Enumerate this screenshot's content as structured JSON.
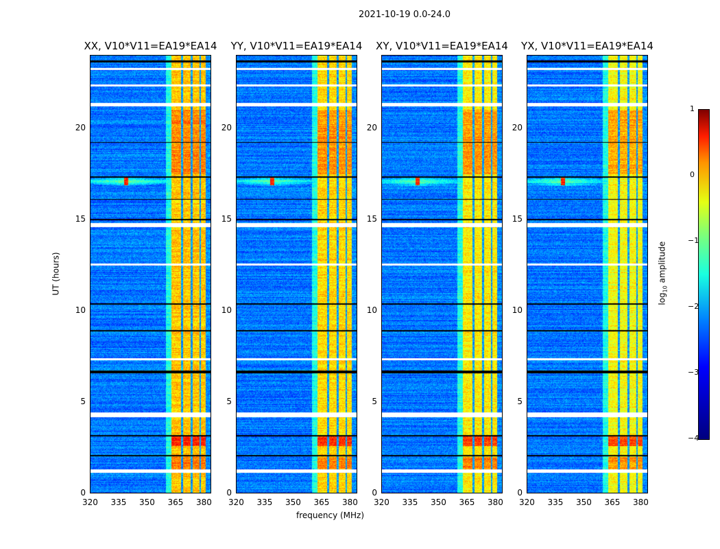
{
  "suptitle": "2021-10-19 0.0-24.0",
  "chart_data": {
    "type": "heatmap",
    "title": "2021-10-19 0.0-24.0",
    "xlabel": "frequency (MHz)",
    "ylabel": "UT (hours)",
    "xlim": [
      320,
      384
    ],
    "ylim": [
      0,
      24
    ],
    "xticks": [
      "320",
      "335",
      "350",
      "365",
      "380"
    ],
    "yticks": [
      "0",
      "5",
      "10",
      "15",
      "20"
    ],
    "panels": [
      {
        "title": "XX, V10*V11=EA19*EA14",
        "high_band_boost": 0.2
      },
      {
        "title": "YY, V10*V11=EA19*EA14",
        "high_band_boost": 0.1
      },
      {
        "title": "XY, V10*V11=EA19*EA14",
        "high_band_boost": 0.0
      },
      {
        "title": "YX, V10*V11=EA19*EA14",
        "high_band_boost": -0.1
      }
    ],
    "colorbar": {
      "label": "log10 amplitude",
      "label_main": "log",
      "label_sub": "10",
      "label_rest": " amplitude",
      "range": [
        -4,
        1
      ],
      "ticks": [
        "1",
        "0",
        "−1",
        "−2",
        "−3",
        "−4"
      ],
      "colormap": "jet"
    },
    "frequency_bands": [
      {
        "from": 320,
        "to": 360,
        "log_amp": -2.8
      },
      {
        "from": 360,
        "to": 363,
        "log_amp": -2.0
      },
      {
        "from": 363,
        "to": 381,
        "log_amp": -0.8
      },
      {
        "from": 381,
        "to": 384,
        "log_amp": -2.7
      }
    ],
    "notches_mhz": [
      368.5,
      373.5,
      378
    ],
    "strong_time_ranges": [
      {
        "from": 2.6,
        "to": 3.2,
        "log_amp": 0.1
      },
      {
        "from": 1.3,
        "to": 2.0,
        "log_amp": -0.3
      },
      {
        "from": 17.5,
        "to": 21.0,
        "log_amp": -0.4
      }
    ],
    "rfi_event": {
      "time": 17.1,
      "freq": 339
    },
    "flagged_white_hours": [
      [
        1.15,
        1.35
      ],
      [
        4.2,
        4.45
      ],
      [
        7.3,
        7.4
      ],
      [
        12.5,
        12.6
      ],
      [
        14.6,
        14.8
      ],
      [
        21.2,
        21.4
      ],
      [
        22.3,
        22.4
      ],
      [
        23.2,
        23.3
      ]
    ],
    "flagged_black_hours": [
      [
        2.05,
        2.12
      ],
      [
        3.15,
        3.22
      ],
      [
        6.6,
        6.75
      ],
      [
        8.9,
        8.97
      ],
      [
        10.35,
        10.42
      ],
      [
        14.95,
        15.05
      ],
      [
        16.1,
        16.15
      ],
      [
        17.3,
        17.38
      ],
      [
        19.2,
        19.25
      ],
      [
        23.6,
        23.7
      ]
    ]
  }
}
